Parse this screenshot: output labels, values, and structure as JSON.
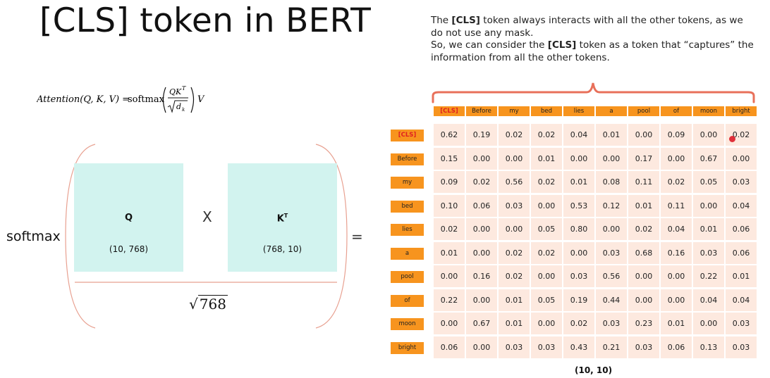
{
  "title": "[CLS] token in BERT",
  "description": {
    "line1_pre": "The ",
    "line1_bold": "[CLS]",
    "line1_post": " token always interacts with all the other tokens, as we do not use any mask.",
    "line2_pre": "So, we can consider the ",
    "line2_bold": "[CLS]",
    "line2_post": " token as a token that “captures” the information from all the other tokens."
  },
  "formula": {
    "lhs": "Attention(Q, K, V) = ",
    "func": "softmax",
    "numerator": "QK",
    "numerator_sup": "T",
    "denominator": "d",
    "denominator_sub": "k",
    "tail": "V"
  },
  "softmax_label": "softmax",
  "q_matrix": {
    "name": "Q",
    "dims": "(10, 768)"
  },
  "k_matrix": {
    "name": "K",
    "sup": "T",
    "dims": "(768, 10)"
  },
  "times_symbol": "X",
  "equals_symbol": "=",
  "divisor": "768",
  "colors": {
    "token_orange": "#f7941e",
    "cell_bg": "#fde9df",
    "matrix_bg": "#d2f3ef",
    "bracket": "#e8705a",
    "cls_red": "#e02020"
  },
  "tokens": [
    "[CLS]",
    "Before",
    "my",
    "bed",
    "lies",
    "a",
    "pool",
    "of",
    "moon",
    "bright"
  ],
  "attention_matrix": [
    [
      "0.62",
      "0.19",
      "0.02",
      "0.02",
      "0.04",
      "0.01",
      "0.00",
      "0.09",
      "0.00",
      "0.02"
    ],
    [
      "0.15",
      "0.00",
      "0.00",
      "0.01",
      "0.00",
      "0.00",
      "0.17",
      "0.00",
      "0.67",
      "0.00"
    ],
    [
      "0.09",
      "0.02",
      "0.56",
      "0.02",
      "0.01",
      "0.08",
      "0.11",
      "0.02",
      "0.05",
      "0.03"
    ],
    [
      "0.10",
      "0.06",
      "0.03",
      "0.00",
      "0.53",
      "0.12",
      "0.01",
      "0.11",
      "0.00",
      "0.04"
    ],
    [
      "0.02",
      "0.00",
      "0.00",
      "0.05",
      "0.80",
      "0.00",
      "0.02",
      "0.04",
      "0.01",
      "0.06"
    ],
    [
      "0.01",
      "0.00",
      "0.02",
      "0.02",
      "0.00",
      "0.03",
      "0.68",
      "0.16",
      "0.03",
      "0.06"
    ],
    [
      "0.00",
      "0.16",
      "0.02",
      "0.00",
      "0.03",
      "0.56",
      "0.00",
      "0.00",
      "0.22",
      "0.01"
    ],
    [
      "0.22",
      "0.00",
      "0.01",
      "0.05",
      "0.19",
      "0.44",
      "0.00",
      "0.00",
      "0.04",
      "0.04"
    ],
    [
      "0.00",
      "0.67",
      "0.01",
      "0.00",
      "0.02",
      "0.03",
      "0.23",
      "0.01",
      "0.00",
      "0.03"
    ],
    [
      "0.06",
      "0.00",
      "0.03",
      "0.03",
      "0.43",
      "0.21",
      "0.03",
      "0.06",
      "0.13",
      "0.03"
    ]
  ],
  "matrix_shape": "(10, 10)"
}
